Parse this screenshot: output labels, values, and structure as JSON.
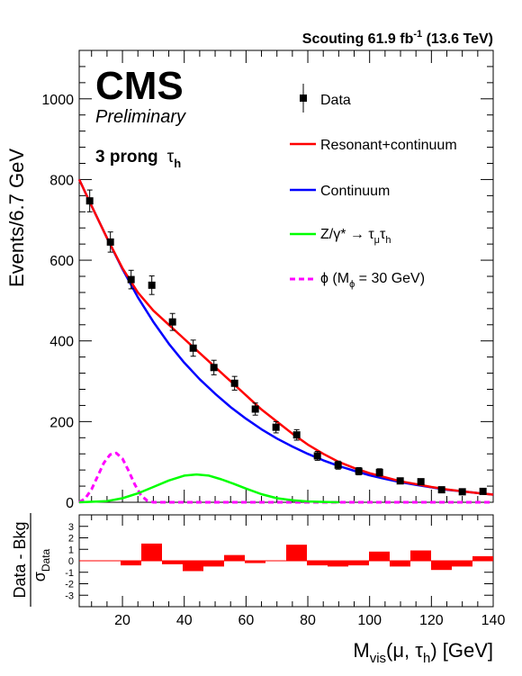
{
  "header": {
    "lumi_text": "Scouting 61.9 fb",
    "lumi_sup": "-1",
    "energy_text": "(13.6 TeV)",
    "cms_label": "CMS",
    "preliminary_label": "Preliminary",
    "category_label": "3 prong",
    "category_tau": "τ",
    "category_tau_sub": "h"
  },
  "legend": {
    "data": "Data",
    "resonant": "Resonant+continuum",
    "continuum": "Continuum",
    "zgamma_main": "Z/γ* → τ",
    "zgamma_sub1": "μ",
    "zgamma_tau2": "τ",
    "zgamma_sub2": "h",
    "phi_prefix": "ϕ (M",
    "phi_sub": "ϕ",
    "phi_suffix": " = 30 GeV)"
  },
  "axes": {
    "ylabel": "Events/6.7 GeV",
    "xlabel_prefix": "M",
    "xlabel_sub": "vis",
    "xlabel_mid": "(μ, τ",
    "xlabel_sub2": "h",
    "xlabel_suffix": ") [GeV]",
    "ratio_ylabel_top": "Data - Bkg",
    "ratio_ylabel_bottom": "σ",
    "ratio_ylabel_bottom_sub": "Data"
  },
  "colors": {
    "data": "#000000",
    "resonant": "#ff0000",
    "continuum": "#0000ff",
    "zgamma": "#00ff00",
    "phi": "#ff00ff",
    "pulls": "#ff0000"
  },
  "chart_data": [
    {
      "type": "scatter",
      "name": "main",
      "xlim": [
        6,
        140
      ],
      "ylim": [
        0,
        1120
      ],
      "x_ticks": [
        20,
        40,
        60,
        80,
        100,
        120,
        140
      ],
      "y_ticks": [
        0,
        200,
        400,
        600,
        800,
        1000
      ],
      "data_points": {
        "x": [
          9.4,
          16.1,
          22.8,
          29.5,
          36.2,
          42.9,
          49.6,
          56.3,
          63.0,
          69.7,
          76.4,
          83.1,
          89.8,
          96.5,
          103.2,
          109.9,
          116.6,
          123.3,
          130.0,
          136.7
        ],
        "y": [
          747,
          645,
          552,
          538,
          447,
          382,
          334,
          295,
          231,
          186,
          167,
          115,
          92,
          77,
          74,
          53,
          51,
          31,
          26,
          27
        ],
        "yerr": [
          27,
          25,
          23,
          23,
          21,
          20,
          18,
          17,
          15,
          14,
          13,
          11,
          10,
          9,
          9,
          7,
          7,
          6,
          5,
          5
        ]
      },
      "series": [
        {
          "name": "Resonant+continuum",
          "x": [
            6,
            10,
            15,
            20,
            25,
            30,
            35,
            40,
            45,
            50,
            55,
            60,
            65,
            70,
            75,
            80,
            85,
            90,
            95,
            100,
            105,
            110,
            115,
            120,
            125,
            130,
            135,
            140
          ],
          "y": [
            800,
            735,
            655,
            580,
            520,
            475,
            440,
            405,
            370,
            335,
            300,
            265,
            230,
            200,
            170,
            143,
            120,
            100,
            85,
            72,
            62,
            52,
            45,
            38,
            32,
            27,
            23,
            19
          ]
        },
        {
          "name": "Continuum",
          "x": [
            6,
            10,
            15,
            20,
            25,
            30,
            35,
            40,
            45,
            50,
            55,
            60,
            65,
            70,
            75,
            80,
            85,
            90,
            95,
            100,
            105,
            110,
            115,
            120,
            125,
            130,
            135,
            140
          ],
          "y": [
            800,
            735,
            655,
            578,
            508,
            447,
            393,
            346,
            305,
            269,
            236,
            207,
            181,
            158,
            138,
            120,
            104,
            90,
            78,
            67,
            58,
            50,
            43,
            37,
            31,
            27,
            23,
            19
          ]
        },
        {
          "name": "Z/γ* → τμτh",
          "x": [
            6,
            15,
            20,
            25,
            30,
            35,
            40,
            44,
            48,
            52,
            56,
            60,
            65,
            70,
            75,
            80,
            85,
            90
          ],
          "y": [
            0,
            3,
            10,
            22,
            38,
            54,
            66,
            69,
            66,
            57,
            46,
            34,
            20,
            10,
            5,
            2,
            1,
            0
          ]
        },
        {
          "name": "ϕ (Mϕ = 30 GeV)",
          "x": [
            6,
            8,
            10,
            12,
            14,
            16,
            18,
            20,
            22,
            24,
            26,
            28,
            30,
            140
          ],
          "y": [
            0,
            10,
            32,
            65,
            98,
            118,
            122,
            108,
            78,
            44,
            17,
            4,
            0,
            0
          ]
        }
      ]
    },
    {
      "type": "bar",
      "name": "ratio",
      "xlim": [
        6,
        140
      ],
      "ylim": [
        -4,
        4
      ],
      "y_ticks": [
        -3,
        -2,
        -1,
        0,
        1,
        2,
        3
      ],
      "bin_edges": [
        6,
        12.7,
        19.4,
        26.1,
        32.8,
        39.5,
        46.2,
        52.9,
        59.6,
        66.3,
        73.0,
        79.7,
        86.4,
        93.1,
        99.8,
        106.5,
        113.2,
        119.9,
        126.6,
        133.3,
        140.0
      ],
      "values": [
        0.0,
        0.0,
        -0.4,
        1.5,
        -0.3,
        -0.9,
        -0.5,
        0.5,
        -0.2,
        0.0,
        1.4,
        -0.4,
        -0.5,
        -0.4,
        0.8,
        -0.5,
        0.9,
        -0.8,
        -0.5,
        0.4
      ]
    }
  ]
}
